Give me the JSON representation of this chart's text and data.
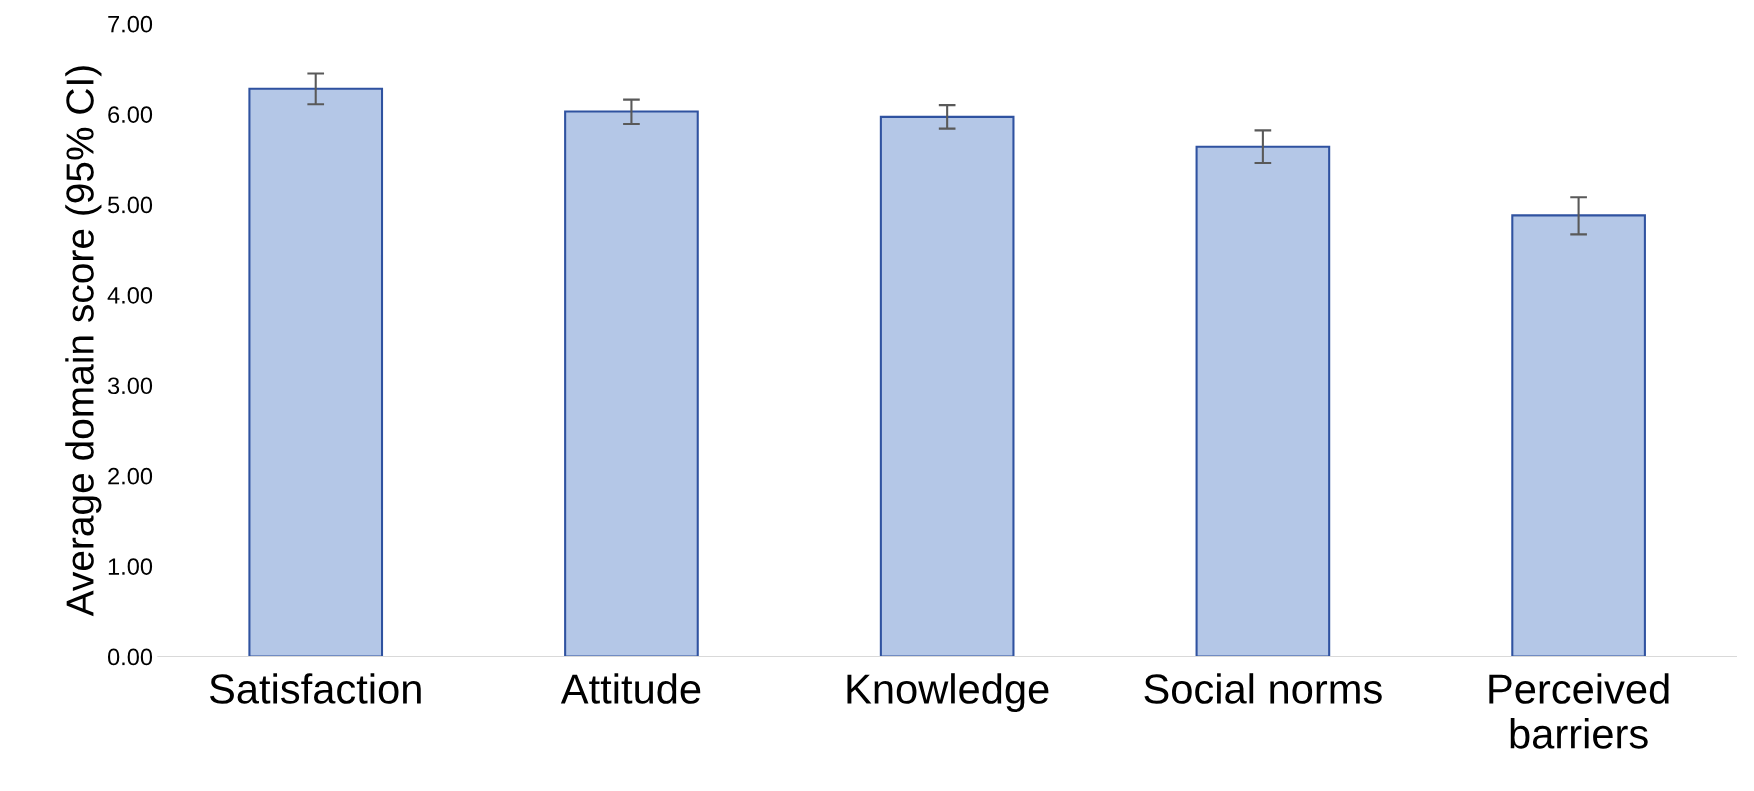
{
  "chart_data": {
    "type": "bar",
    "ylabel": "Average domain score (95% CI)",
    "categories": [
      "Satisfaction",
      "Attitude",
      "Knowledge",
      "Social norms",
      "Perceived\nbarriers"
    ],
    "series": [
      {
        "color": "#b4c7e7",
        "values": [
          6.28,
          6.03,
          5.97,
          5.64,
          4.88
        ],
        "errors": [
          [
            6.11,
            6.45
          ],
          [
            5.89,
            6.16
          ],
          [
            5.84,
            6.1
          ],
          [
            5.46,
            5.82
          ],
          [
            4.67,
            5.08
          ]
        ]
      }
    ],
    "ylim": [
      0,
      7
    ],
    "yticks": [
      {
        "value": 0,
        "label": "0.00"
      },
      {
        "value": 1,
        "label": "1.00"
      },
      {
        "value": 2,
        "label": "2.00"
      },
      {
        "value": 3,
        "label": "3.00"
      },
      {
        "value": 4,
        "label": "4.00"
      },
      {
        "value": 5,
        "label": "5.00"
      },
      {
        "value": 6,
        "label": "6.00"
      },
      {
        "value": 7,
        "label": "7.00"
      }
    ],
    "grid": false,
    "legend": false
  }
}
